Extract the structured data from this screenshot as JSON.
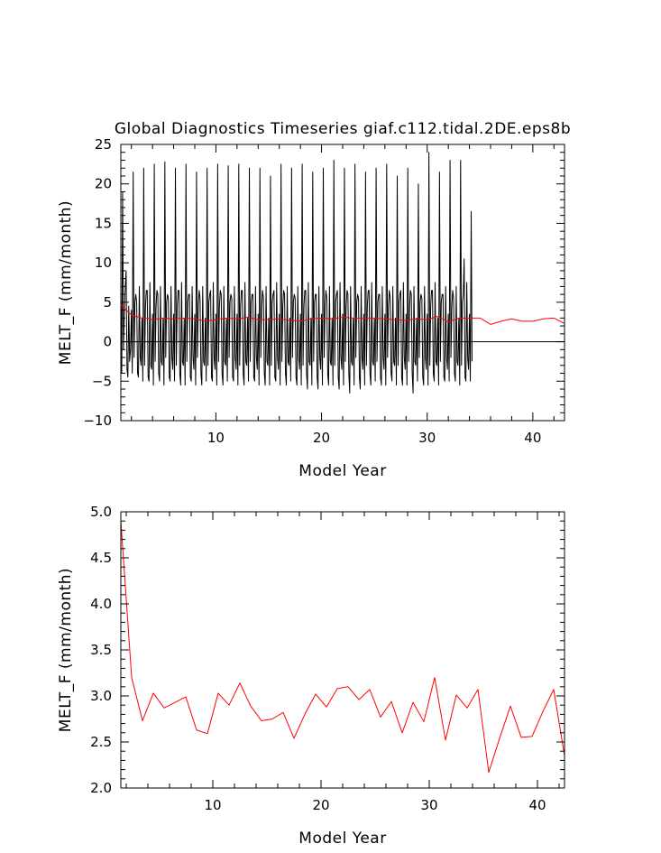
{
  "chart_data": [
    {
      "type": "line",
      "title": "Global Diagnostics Timeseries giaf.c112.tidal.2DE.eps8b",
      "xlabel": "Model Year",
      "ylabel": "MELT_F (mm/month)",
      "xlim": [
        1,
        43
      ],
      "ylim": [
        -10,
        25
      ],
      "xticks": [
        10,
        20,
        30,
        40
      ],
      "yticks": [
        -10,
        -5,
        0,
        5,
        10,
        15,
        20,
        25
      ],
      "zero_line": true,
      "series": [
        {
          "color": "#000000",
          "x_start": 1.0,
          "step": 0.08333,
          "values": [
            6.5,
            -4.0,
            19.0,
            -1.0,
            3.5,
            7.0,
            9.0,
            -3.5,
            -4.5,
            4.5,
            -2.5,
            -1.0,
            4.0,
            -4.0,
            21.5,
            -2.0,
            5.0,
            6.0,
            5.0,
            -4.0,
            -4.5,
            7.0,
            -2.0,
            -3.0,
            3.0,
            -5.0,
            22.0,
            -3.0,
            4.5,
            6.5,
            6.5,
            -4.5,
            -5.0,
            7.5,
            -3.0,
            -3.5,
            3.5,
            -5.5,
            22.5,
            -2.5,
            4.5,
            6.5,
            6.0,
            -4.0,
            -5.0,
            7.0,
            -2.5,
            -3.0,
            3.0,
            -5.5,
            22.8,
            -2.0,
            5.0,
            6.0,
            5.5,
            -4.5,
            -5.0,
            7.0,
            -2.0,
            -3.5,
            3.5,
            -5.0,
            22.0,
            -3.0,
            4.5,
            6.5,
            6.5,
            -4.0,
            -5.5,
            7.5,
            -2.5,
            -3.0,
            3.0,
            -5.5,
            22.5,
            -2.5,
            5.0,
            6.0,
            6.0,
            -4.5,
            -5.0,
            7.0,
            -2.0,
            -3.5,
            3.5,
            -5.5,
            21.5,
            -2.0,
            4.5,
            6.5,
            5.5,
            -4.0,
            -5.5,
            7.0,
            -2.5,
            -3.0,
            3.0,
            -5.0,
            22.0,
            -3.0,
            5.0,
            6.0,
            6.5,
            -4.5,
            -5.0,
            7.5,
            -2.0,
            -3.5,
            3.5,
            -5.5,
            22.5,
            -2.5,
            4.5,
            6.5,
            6.0,
            -4.0,
            -5.5,
            7.0,
            -2.5,
            -3.0,
            3.0,
            -5.0,
            22.3,
            -2.0,
            5.0,
            6.0,
            5.5,
            -4.5,
            -5.0,
            7.0,
            -2.0,
            -3.5,
            3.5,
            -5.5,
            22.5,
            -3.0,
            4.5,
            6.5,
            6.5,
            -4.0,
            -5.5,
            7.5,
            -2.5,
            -3.0,
            3.0,
            -5.0,
            22.0,
            -2.5,
            5.0,
            6.0,
            6.0,
            -4.5,
            -5.0,
            7.0,
            -2.0,
            -3.5,
            3.5,
            -5.5,
            22.0,
            -2.0,
            4.5,
            6.5,
            5.5,
            -4.0,
            -5.5,
            7.0,
            -2.5,
            -3.0,
            3.0,
            -5.5,
            21.0,
            -3.0,
            5.0,
            6.0,
            6.5,
            -4.5,
            -5.0,
            7.5,
            -2.0,
            -3.5,
            3.5,
            -5.5,
            22.5,
            -2.5,
            4.5,
            6.5,
            6.0,
            -4.0,
            -5.5,
            7.0,
            -2.5,
            -3.0,
            3.0,
            -5.0,
            22.0,
            -2.0,
            5.0,
            6.0,
            5.5,
            -4.5,
            -5.5,
            7.0,
            -2.0,
            -3.5,
            3.5,
            -5.5,
            22.5,
            -3.0,
            4.5,
            6.5,
            6.5,
            -4.0,
            -6.0,
            7.5,
            -2.5,
            -3.0,
            3.0,
            -5.5,
            21.5,
            -2.5,
            5.0,
            6.0,
            6.0,
            -4.5,
            -6.0,
            7.0,
            -2.0,
            -3.5,
            3.5,
            -5.5,
            22.0,
            -2.0,
            4.5,
            6.5,
            5.5,
            -4.0,
            -5.5,
            7.0,
            -2.5,
            -3.0,
            3.0,
            -5.5,
            23.0,
            -3.0,
            5.0,
            6.0,
            6.5,
            -4.5,
            -6.0,
            7.5,
            -2.0,
            -3.5,
            3.5,
            -5.5,
            22.0,
            -2.5,
            4.5,
            6.5,
            6.0,
            -4.0,
            -6.5,
            7.0,
            -2.5,
            -3.0,
            3.0,
            -5.5,
            22.5,
            -2.0,
            5.0,
            6.0,
            5.5,
            -4.5,
            -6.0,
            7.0,
            -2.0,
            -3.5,
            3.5,
            -5.5,
            21.5,
            -3.0,
            4.5,
            6.5,
            6.5,
            -4.0,
            -5.5,
            7.5,
            -2.5,
            -3.0,
            3.0,
            -5.0,
            22.0,
            -2.5,
            5.0,
            6.0,
            6.0,
            -4.5,
            -5.5,
            7.0,
            -2.0,
            -3.5,
            3.5,
            -5.5,
            22.5,
            -2.0,
            4.5,
            6.5,
            5.5,
            -4.0,
            -5.0,
            7.0,
            -2.5,
            -3.0,
            3.0,
            -5.5,
            21.0,
            -3.0,
            5.0,
            6.0,
            6.5,
            -4.5,
            -5.5,
            7.5,
            -2.0,
            -3.5,
            3.5,
            -5.5,
            22.0,
            -2.5,
            4.5,
            6.5,
            6.0,
            -4.0,
            -6.5,
            7.0,
            -2.5,
            -3.0,
            3.0,
            -5.0,
            20.0,
            -2.0,
            5.0,
            6.0,
            5.5,
            -4.5,
            -5.5,
            7.0,
            -2.0,
            -3.5,
            3.5,
            -5.5,
            24.0,
            -3.0,
            4.5,
            6.5,
            6.5,
            -4.0,
            -5.0,
            7.5,
            -2.5,
            -3.0,
            3.0,
            -5.5,
            21.5,
            -2.5,
            5.0,
            6.0,
            6.0,
            -4.5,
            -5.0,
            7.0,
            -2.0,
            -3.5,
            3.5,
            -5.0,
            23.0,
            -2.0,
            4.5,
            6.5,
            5.5,
            -4.0,
            -5.0,
            7.0,
            -2.5,
            -3.0,
            3.0,
            -5.5,
            23.0,
            -3.0,
            5.0,
            6.0,
            10.5,
            -4.5,
            -5.0,
            7.5,
            -2.0,
            -3.5,
            3.5,
            -5.0,
            16.5,
            -2.5
          ]
        },
        {
          "color": "#ff0000",
          "x": [
            1.0,
            1.5,
            2.0,
            2.5,
            3.0,
            3.5,
            4.0,
            5.0,
            6.0,
            7.0,
            8.0,
            9.0,
            10.0,
            11.0,
            12.0,
            13.0,
            14.0,
            15.0,
            16.0,
            17.0,
            18.0,
            19.0,
            20.0,
            21.0,
            22.0,
            23.0,
            24.0,
            25.0,
            26.0,
            27.0,
            28.0,
            29.0,
            30.0,
            31.0,
            32.0,
            33.0,
            34.0,
            35.0,
            36.0,
            37.0,
            38.0,
            39.0,
            40.0,
            41.0,
            42.0,
            43.0
          ],
          "values": [
            4.8,
            4.0,
            3.4,
            3.2,
            3.0,
            3.0,
            2.8,
            3.0,
            2.9,
            3.0,
            2.9,
            2.6,
            2.8,
            3.0,
            2.9,
            3.1,
            2.8,
            2.8,
            2.9,
            2.7,
            2.6,
            2.9,
            3.0,
            2.9,
            3.1,
            3.0,
            3.0,
            3.0,
            2.9,
            2.8,
            2.7,
            2.9,
            2.8,
            3.2,
            2.5,
            3.0,
            3.0,
            3.0,
            2.2,
            2.6,
            2.9,
            2.6,
            2.6,
            2.9,
            3.0,
            2.3
          ]
        }
      ]
    },
    {
      "type": "line",
      "title": "",
      "xlabel": "Model Year",
      "ylabel": "MELT_F (mm/month)",
      "xlim": [
        1.5,
        42.5
      ],
      "ylim": [
        2.0,
        5.0
      ],
      "xticks": [
        10,
        20,
        30,
        40
      ],
      "yticks": [
        2.0,
        2.5,
        3.0,
        3.5,
        4.0,
        4.5,
        5.0
      ],
      "ytick_labels": [
        "2.0",
        "2.5",
        "3.0",
        "3.5",
        "4.0",
        "4.5",
        "5.0"
      ],
      "series": [
        {
          "color": "#ff0000",
          "x": [
            1.5,
            2.5,
            3.5,
            4.5,
            5.5,
            6.5,
            7.5,
            8.5,
            9.5,
            10.5,
            11.5,
            12.5,
            13.5,
            14.5,
            15.5,
            16.5,
            17.5,
            18.5,
            19.5,
            20.5,
            21.5,
            22.5,
            23.5,
            24.5,
            25.5,
            26.5,
            27.5,
            28.5,
            29.5,
            30.5,
            31.5,
            32.5,
            33.5,
            34.5,
            35.5,
            36.5,
            37.5,
            38.5,
            39.5,
            40.5,
            41.5,
            42.5
          ],
          "values": [
            4.9,
            3.2,
            2.73,
            3.03,
            2.87,
            2.93,
            2.99,
            2.63,
            2.59,
            3.03,
            2.9,
            3.14,
            2.89,
            2.73,
            2.75,
            2.82,
            2.54,
            2.8,
            3.02,
            2.88,
            3.08,
            3.1,
            2.96,
            3.07,
            2.77,
            2.94,
            2.6,
            2.93,
            2.72,
            3.2,
            2.52,
            3.01,
            2.87,
            3.07,
            2.17,
            2.54,
            2.89,
            2.55,
            2.56,
            2.83,
            3.07,
            2.35
          ]
        }
      ]
    }
  ]
}
